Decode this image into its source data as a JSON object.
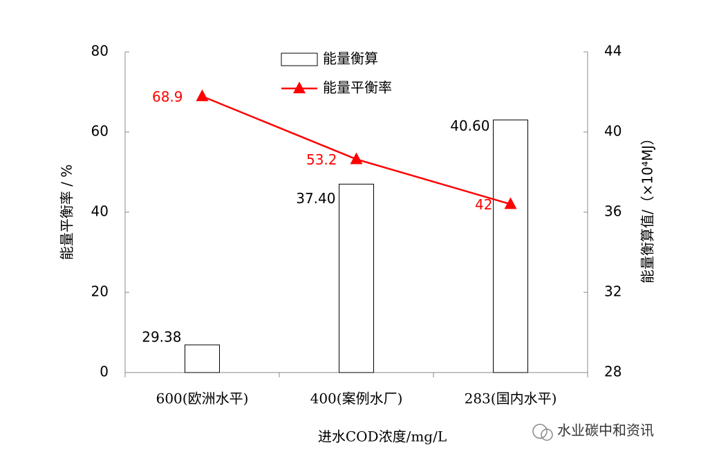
{
  "chart_data": {
    "type": "combo",
    "xlabel": "进水COD浓度/mg/L",
    "ylabel": "能量平衡率 / %",
    "y2label": "能量衡算值/（×10⁴MJ）",
    "categories": [
      "600(欧洲水平)",
      "400(案例水厂)",
      "283(国内水平)"
    ],
    "series": [
      {
        "name": "能量衡算",
        "type": "bar",
        "axis": "y2",
        "color": "#ffffff",
        "values": [
          29.38,
          37.4,
          40.6
        ],
        "value_labels": [
          "29.38",
          "37.40",
          "40.60"
        ]
      },
      {
        "name": "能量平衡率",
        "type": "line",
        "color": "#ff0000",
        "values": [
          68.9,
          53.2,
          42
        ]
      }
    ],
    "ylim": [
      0,
      80
    ],
    "yticks": [
      0,
      20,
      40,
      60,
      80
    ],
    "y2lim": [
      28,
      44
    ],
    "y2ticks": [
      28,
      32,
      36,
      40,
      44
    ],
    "grid": false,
    "legend": "top"
  },
  "watermark": "水业碳中和资讯"
}
